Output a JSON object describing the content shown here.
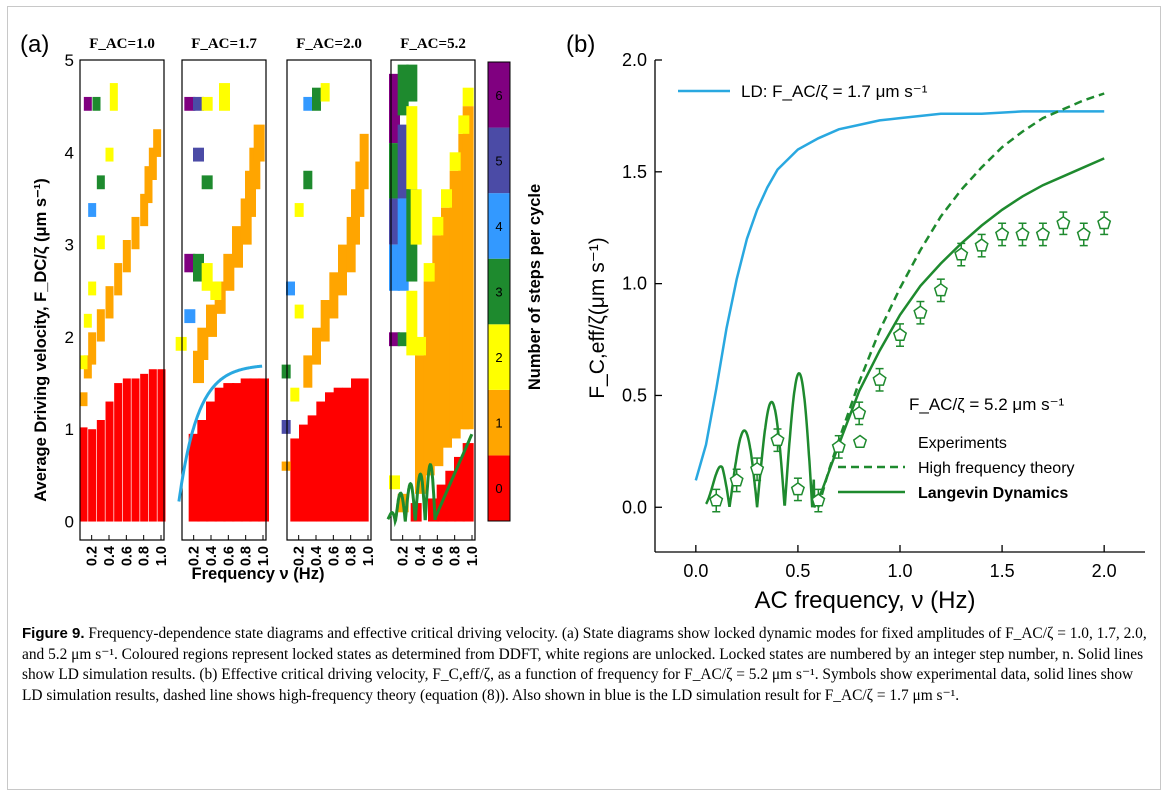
{
  "panel_a": {
    "label": "(a)",
    "ylabel": "Average Driving velocity, F_DC/ζ (μm s⁻¹)",
    "xlabel": "Frequency ν (Hz)",
    "colorbar_label": "Number of steps per cycle",
    "colorbar_colors": [
      "#ff0000",
      "#ffa500",
      "#ffff00",
      "#1e8a2e",
      "#3399ff",
      "#4b4ba6",
      "#800080"
    ],
    "colorbar_ticks": [
      "0",
      "1",
      "2",
      "3",
      "4",
      "5",
      "6"
    ],
    "y_ticks": [
      "0",
      "1",
      "2",
      "3",
      "4",
      "5"
    ],
    "x_ticks": [
      "0.2",
      "0.4",
      "0.6",
      "0.8",
      "1.0"
    ],
    "subplot_titles": [
      "F_AC=1.0",
      "F_AC=1.7",
      "F_AC=2.0",
      "F_AC=5.2"
    ],
    "subplot_amplitudes": [
      1.0,
      1.7,
      2.0,
      5.2
    ]
  },
  "chart_data": {
    "type": "scatter",
    "label": "(b)",
    "xlabel": "AC frequency, ν (Hz)",
    "ylabel": "F_C,eff/ζ(μm s⁻¹)",
    "xlim": [
      -0.2,
      2.2
    ],
    "ylim": [
      -0.2,
      2.0
    ],
    "x_ticks": [
      "0.0",
      "0.5",
      "1.0",
      "1.5",
      "2.0"
    ],
    "y_ticks": [
      "0.0",
      "0.5",
      "1.0",
      "1.5",
      "2.0"
    ],
    "annotations": [
      "LD: F_AC/ζ = 1.7 μm s⁻¹",
      "F_AC/ζ = 5.2 μm s⁻¹"
    ],
    "series": [
      {
        "name": "Experiments",
        "style": "pentagon-markers",
        "color": "#1e8a2e",
        "x": [
          0.1,
          0.2,
          0.3,
          0.4,
          0.5,
          0.6,
          0.7,
          0.8,
          0.9,
          1.0,
          1.1,
          1.2,
          1.3,
          1.4,
          1.5,
          1.6,
          1.7,
          1.8,
          1.9,
          2.0
        ],
        "y": [
          0.03,
          0.12,
          0.17,
          0.3,
          0.08,
          0.03,
          0.27,
          0.42,
          0.57,
          0.77,
          0.87,
          0.97,
          1.13,
          1.17,
          1.22,
          1.22,
          1.22,
          1.27,
          1.22,
          1.27
        ],
        "err": [
          0.05,
          0.05,
          0.05,
          0.05,
          0.05,
          0.05,
          0.05,
          0.05,
          0.05,
          0.05,
          0.05,
          0.05,
          0.05,
          0.05,
          0.05,
          0.05,
          0.05,
          0.05,
          0.05,
          0.05
        ]
      },
      {
        "name": "High frequency theory",
        "style": "dashed",
        "color": "#1e8a2e",
        "x": [
          0.6,
          0.65,
          0.7,
          0.8,
          0.9,
          1.0,
          1.1,
          1.2,
          1.3,
          1.4,
          1.5,
          1.6,
          1.7,
          1.8,
          1.9,
          2.0
        ],
        "y": [
          0.0,
          0.16,
          0.3,
          0.56,
          0.79,
          0.98,
          1.15,
          1.3,
          1.42,
          1.52,
          1.61,
          1.68,
          1.74,
          1.78,
          1.82,
          1.85
        ]
      },
      {
        "name": "Langevin Dynamics",
        "style": "solid",
        "color": "#1e8a2e",
        "x": [
          0.58,
          0.62,
          0.66,
          0.7,
          0.75,
          0.8,
          0.9,
          1.0,
          1.1,
          1.2,
          1.3,
          1.4,
          1.5,
          1.6,
          1.7,
          1.8,
          1.9,
          2.0
        ],
        "y": [
          0.0,
          0.08,
          0.18,
          0.28,
          0.4,
          0.52,
          0.7,
          0.86,
          0.99,
          1.09,
          1.18,
          1.26,
          1.33,
          1.39,
          1.44,
          1.48,
          1.52,
          1.56
        ]
      },
      {
        "name": "LD: F_AC/ζ = 1.7 μm s⁻¹",
        "style": "solid",
        "color": "#29a8e0",
        "x": [
          0.0,
          0.05,
          0.1,
          0.15,
          0.2,
          0.25,
          0.3,
          0.35,
          0.4,
          0.5,
          0.6,
          0.7,
          0.8,
          0.9,
          1.0,
          1.2,
          1.4,
          1.6,
          1.8,
          2.0
        ],
        "y": [
          0.12,
          0.28,
          0.53,
          0.8,
          1.02,
          1.2,
          1.33,
          1.43,
          1.51,
          1.6,
          1.65,
          1.69,
          1.71,
          1.73,
          1.74,
          1.76,
          1.76,
          1.77,
          1.77,
          1.77
        ]
      }
    ]
  },
  "legend": {
    "title": "F_AC/ζ = 5.2 μm s⁻¹",
    "entries": [
      "Experiments",
      "High frequency theory",
      "Langevin Dynamics"
    ]
  },
  "caption": {
    "lead": "Figure 9.",
    "body": " Frequency-dependence state diagrams and effective critical driving velocity. (a) State diagrams show locked dynamic modes for fixed amplitudes of F_AC/ζ = 1.0, 1.7, 2.0, and 5.2 μm s⁻¹. Coloured regions represent locked states as determined from DDFT, white regions are unlocked. Locked states are numbered by an integer step number, n. Solid lines show LD simulation results. (b) Effective critical driving velocity, F_C,eff/ζ, as a function of frequency for F_AC/ζ = 5.2 μm s⁻¹. Symbols show experimental data, solid lines show LD simulation results, dashed line shows high-frequency theory (equation (8)). Also shown in blue is the LD simulation result for F_AC/ζ = 1.7 μm s⁻¹."
  }
}
